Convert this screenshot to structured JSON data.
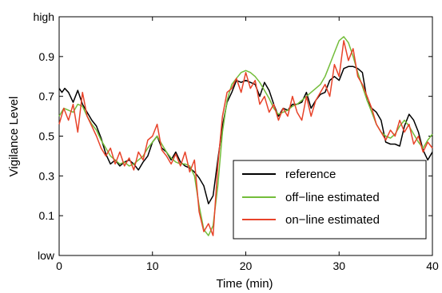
{
  "chart_data": {
    "type": "line",
    "xlabel": "Time (min)",
    "ylabel": "Vigilance Level",
    "xlim": [
      0,
      40
    ],
    "ylim": [
      -0.1,
      1.1
    ],
    "xticks": [
      0,
      10,
      20,
      30,
      40
    ],
    "xtick_labels": [
      "0",
      "10",
      "20",
      "30",
      "40"
    ],
    "yticks": [
      -0.1,
      0.1,
      0.3,
      0.5,
      0.7,
      0.9,
      1.1
    ],
    "ytick_labels": [
      "low",
      "0.1",
      "0.3",
      "0.5",
      "0.7",
      "0.9",
      "high"
    ],
    "grid": false,
    "legend_position": "bottom-right",
    "series": [
      {
        "name": "reference",
        "color": "#000000",
        "x": [
          0,
          0.3,
          0.6,
          1,
          1.5,
          2,
          2.5,
          3,
          3.5,
          4,
          4.5,
          5,
          5.5,
          6,
          6.5,
          7,
          7.5,
          8,
          8.5,
          9,
          9.5,
          10,
          10.5,
          11,
          11.5,
          12,
          12.5,
          13,
          13.5,
          14,
          14.5,
          15,
          15.5,
          16,
          16.5,
          17,
          17.5,
          18,
          18.5,
          19,
          19.5,
          20,
          20.5,
          21,
          21.5,
          22,
          22.5,
          23,
          23.5,
          24,
          24.5,
          25,
          25.5,
          26,
          26.5,
          27,
          27.5,
          28,
          28.5,
          29,
          29.5,
          30,
          30.5,
          31,
          31.5,
          32,
          32.5,
          33,
          33.5,
          34,
          34.5,
          35,
          35.5,
          36,
          36.5,
          37,
          37.5,
          38,
          38.5,
          39,
          39.5,
          40
        ],
        "y": [
          0.74,
          0.72,
          0.74,
          0.72,
          0.67,
          0.73,
          0.66,
          0.62,
          0.58,
          0.55,
          0.49,
          0.41,
          0.36,
          0.38,
          0.35,
          0.37,
          0.38,
          0.36,
          0.33,
          0.37,
          0.4,
          0.47,
          0.5,
          0.44,
          0.42,
          0.38,
          0.42,
          0.37,
          0.35,
          0.34,
          0.32,
          0.29,
          0.25,
          0.16,
          0.2,
          0.38,
          0.55,
          0.67,
          0.72,
          0.78,
          0.77,
          0.78,
          0.77,
          0.76,
          0.7,
          0.77,
          0.73,
          0.66,
          0.6,
          0.64,
          0.63,
          0.66,
          0.66,
          0.67,
          0.72,
          0.64,
          0.68,
          0.71,
          0.72,
          0.78,
          0.8,
          0.78,
          0.84,
          0.85,
          0.85,
          0.84,
          0.82,
          0.68,
          0.64,
          0.62,
          0.58,
          0.47,
          0.46,
          0.46,
          0.45,
          0.55,
          0.61,
          0.58,
          0.52,
          0.43,
          0.38,
          0.42
        ]
      },
      {
        "name": "off−line estimated",
        "color": "#73bd3a",
        "x": [
          0,
          0.5,
          1,
          1.5,
          2,
          2.5,
          3,
          3.5,
          4,
          4.5,
          5,
          5.5,
          6,
          6.5,
          7,
          7.5,
          8,
          8.5,
          9,
          9.5,
          10,
          10.5,
          11,
          11.5,
          12,
          12.5,
          13,
          13.5,
          14,
          14.5,
          15,
          15.5,
          16,
          16.5,
          17,
          17.5,
          18,
          18.5,
          19,
          19.5,
          20,
          20.5,
          21,
          21.5,
          22,
          22.5,
          23,
          23.5,
          24,
          24.5,
          25,
          25.5,
          26,
          26.5,
          27,
          27.5,
          28,
          28.5,
          29,
          29.5,
          30,
          30.5,
          31,
          31.5,
          32,
          32.5,
          33,
          33.5,
          34,
          34.5,
          35,
          35.5,
          36,
          36.5,
          37,
          37.5,
          38,
          38.5,
          39,
          39.5,
          40
        ],
        "y": [
          0.6,
          0.64,
          0.63,
          0.62,
          0.66,
          0.65,
          0.6,
          0.56,
          0.53,
          0.48,
          0.44,
          0.4,
          0.38,
          0.36,
          0.37,
          0.35,
          0.36,
          0.38,
          0.4,
          0.44,
          0.47,
          0.5,
          0.46,
          0.42,
          0.39,
          0.37,
          0.36,
          0.36,
          0.35,
          0.3,
          0.15,
          0.03,
          0.0,
          0.05,
          0.25,
          0.52,
          0.68,
          0.76,
          0.79,
          0.82,
          0.83,
          0.82,
          0.8,
          0.77,
          0.73,
          0.69,
          0.64,
          0.61,
          0.62,
          0.63,
          0.65,
          0.66,
          0.68,
          0.7,
          0.72,
          0.74,
          0.76,
          0.8,
          0.86,
          0.92,
          0.98,
          1.0,
          0.97,
          0.9,
          0.82,
          0.75,
          0.68,
          0.62,
          0.56,
          0.52,
          0.5,
          0.49,
          0.51,
          0.55,
          0.58,
          0.55,
          0.51,
          0.47,
          0.44,
          0.48,
          0.51
        ]
      },
      {
        "name": "on−line estimated",
        "color": "#e8432a",
        "x": [
          0,
          0.5,
          1,
          1.5,
          2,
          2.5,
          3,
          3.5,
          4,
          4.5,
          5,
          5.5,
          6,
          6.5,
          7,
          7.5,
          8,
          8.5,
          9,
          9.5,
          10,
          10.5,
          11,
          11.5,
          12,
          12.5,
          13,
          13.5,
          14,
          14.5,
          15,
          15.5,
          16,
          16.5,
          17,
          17.5,
          18,
          18.5,
          19,
          19.5,
          20,
          20.5,
          21,
          21.5,
          22,
          22.5,
          23,
          23.5,
          24,
          24.5,
          25,
          25.5,
          26,
          26.5,
          27,
          27.5,
          28,
          28.5,
          29,
          29.5,
          30,
          30.5,
          31,
          31.5,
          32,
          32.5,
          33,
          33.5,
          34,
          34.5,
          35,
          35.5,
          36,
          36.5,
          37,
          37.5,
          38,
          38.5,
          39,
          39.5,
          40
        ],
        "y": [
          0.56,
          0.64,
          0.58,
          0.66,
          0.52,
          0.72,
          0.6,
          0.55,
          0.5,
          0.44,
          0.4,
          0.44,
          0.36,
          0.42,
          0.35,
          0.39,
          0.33,
          0.42,
          0.38,
          0.48,
          0.5,
          0.56,
          0.43,
          0.4,
          0.36,
          0.41,
          0.35,
          0.42,
          0.32,
          0.38,
          0.12,
          0.02,
          0.06,
          0.0,
          0.35,
          0.6,
          0.72,
          0.74,
          0.79,
          0.72,
          0.82,
          0.74,
          0.78,
          0.66,
          0.7,
          0.62,
          0.66,
          0.58,
          0.64,
          0.6,
          0.7,
          0.62,
          0.58,
          0.7,
          0.6,
          0.68,
          0.72,
          0.76,
          0.7,
          0.86,
          0.8,
          0.98,
          0.88,
          0.94,
          0.8,
          0.76,
          0.7,
          0.64,
          0.56,
          0.52,
          0.48,
          0.53,
          0.5,
          0.58,
          0.52,
          0.56,
          0.46,
          0.5,
          0.42,
          0.47,
          0.44
        ]
      }
    ]
  }
}
